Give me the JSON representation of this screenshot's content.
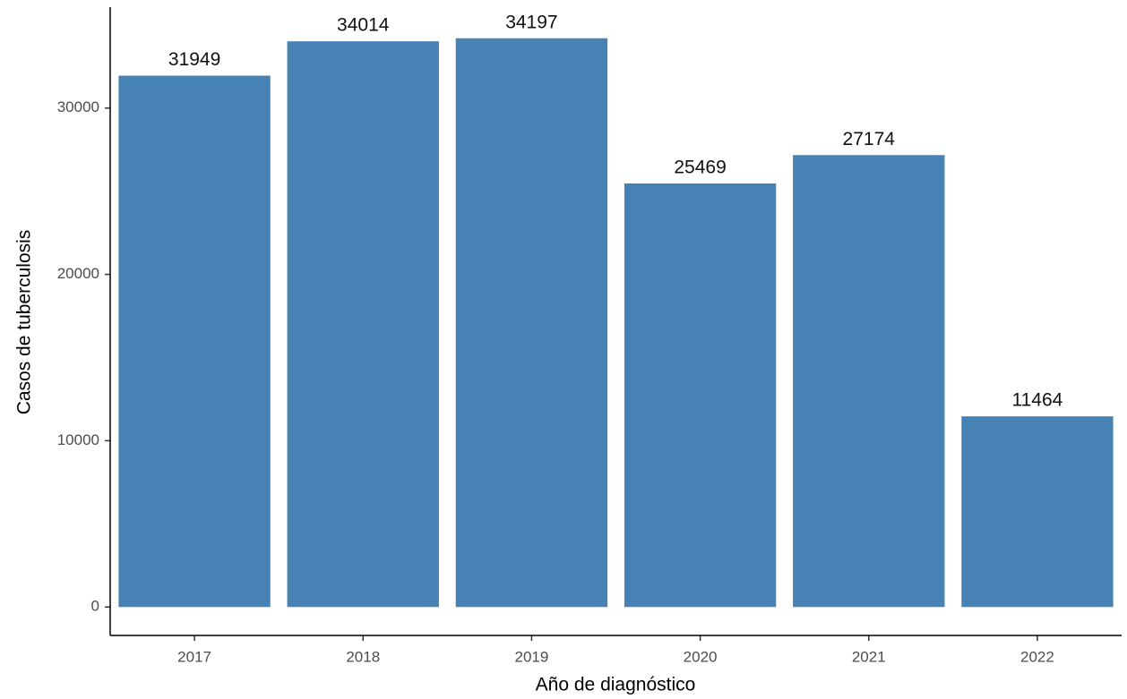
{
  "chart_data": {
    "type": "bar",
    "x_label": "Año de diagnóstico",
    "y_label": "Casos de tuberculosis",
    "categories": [
      "2017",
      "2018",
      "2019",
      "2020",
      "2021",
      "2022"
    ],
    "values": [
      31949,
      34014,
      34197,
      25469,
      27174,
      11464
    ],
    "color": "#4682b4",
    "ylim": [
      -1710,
      35907
    ],
    "yticks": [
      0,
      10000,
      20000,
      30000
    ],
    "grid": false
  }
}
